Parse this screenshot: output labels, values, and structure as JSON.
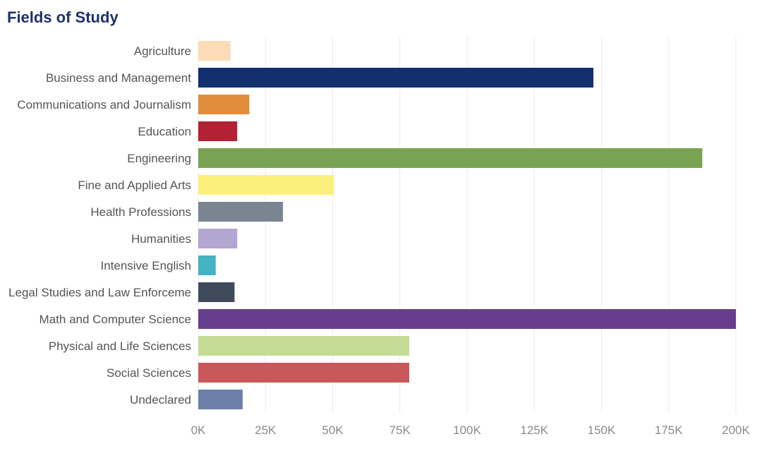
{
  "chart_data": {
    "type": "bar",
    "orientation": "horizontal",
    "title": "Fields of Study",
    "categories": [
      "Agriculture",
      "Business and Management",
      "Communications and Journalism",
      "Education",
      "Engineering",
      "Fine and Applied Arts",
      "Health Professions",
      "Humanities",
      "Intensive English",
      "Legal Studies and Law Enforceme",
      "Math and Computer Science",
      "Physical and Life Sciences",
      "Social Sciences",
      "Undeclared"
    ],
    "values": [
      12000,
      147000,
      19000,
      14500,
      187500,
      50500,
      31500,
      14500,
      6500,
      13500,
      200000,
      78500,
      78500,
      16500
    ],
    "colors": [
      "#fbdcb5",
      "#122f6e",
      "#e08d3c",
      "#b22234",
      "#79a252",
      "#fcf07c",
      "#7b8592",
      "#b3a6d0",
      "#46b3c3",
      "#3f4b5d",
      "#673e8e",
      "#c6dc96",
      "#c9585a",
      "#6b7fa9"
    ],
    "xlim": [
      0,
      200000
    ],
    "xticks": [
      0,
      25000,
      50000,
      75000,
      100000,
      125000,
      150000,
      175000,
      200000
    ],
    "xtick_labels": [
      "0K",
      "25K",
      "50K",
      "75K",
      "100K",
      "125K",
      "150K",
      "175K",
      "200K"
    ],
    "xlabel": "",
    "ylabel": "",
    "grid": "vertical"
  }
}
